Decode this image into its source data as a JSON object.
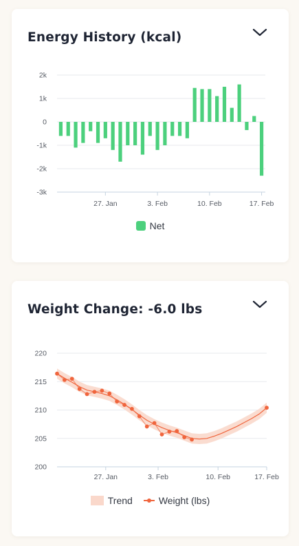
{
  "energy_card": {
    "title": "Energy History (kcal)",
    "legend": "Net"
  },
  "weight_card": {
    "title": "Weight Change: -6.0 lbs",
    "legend_trend": "Trend",
    "legend_weight": "Weight (lbs)"
  },
  "colors": {
    "net_bar": "#4cd07d",
    "weight_line": "#f0653d",
    "trend_band": "#fad8cb",
    "grid": "#e7e9ee"
  },
  "icons": {
    "collapse": "chevron-down-icon"
  },
  "chart_data": [
    {
      "type": "bar",
      "x_tick_labels": [
        "27. Jan",
        "3. Feb",
        "10. Feb",
        "17. Feb"
      ],
      "y_tick_labels": [
        "2k",
        "1k",
        "0",
        "-1k",
        "-2k",
        "-3k"
      ],
      "ylim": [
        -3000,
        2000
      ],
      "grid": true,
      "legend_position": "bottom",
      "series": [
        {
          "name": "Net",
          "values": [
            -600,
            -600,
            -1100,
            -900,
            -400,
            -900,
            -700,
            -1200,
            -1700,
            -1000,
            -1000,
            -1400,
            -600,
            -1200,
            -1000,
            -600,
            -600,
            -700,
            1450,
            1400,
            1400,
            1100,
            1500,
            600,
            1600,
            -350,
            250,
            -2300
          ]
        }
      ]
    },
    {
      "type": "line",
      "x_tick_labels": [
        "27. Jan",
        "3. Feb",
        "10. Feb",
        "17. Feb"
      ],
      "y_tick_labels": [
        "220",
        "215",
        "210",
        "205",
        "200"
      ],
      "ylim": [
        200,
        220
      ],
      "grid": true,
      "legend_position": "bottom",
      "series": [
        {
          "name": "Weight (lbs)",
          "values": [
            216.4,
            215.3,
            215.5,
            213.7,
            212.8,
            213.2,
            213.4,
            212.9,
            211.5,
            210.9,
            210.2,
            208.9,
            207.1,
            207.7,
            205.7,
            206.2,
            206.3,
            205.2,
            204.8
          ]
        },
        {
          "name": "Trend",
          "values": [
            216.4,
            215.6,
            214.9,
            214.1,
            213.5,
            213.2,
            212.9,
            212.5,
            211.8,
            211.0,
            210.1,
            209.1,
            208.2,
            207.5,
            206.9,
            206.4,
            206.0,
            205.5,
            205.0,
            204.9,
            205.0,
            205.4,
            205.9,
            206.5,
            207.1,
            207.8,
            208.5,
            209.3,
            210.4
          ]
        }
      ]
    }
  ]
}
